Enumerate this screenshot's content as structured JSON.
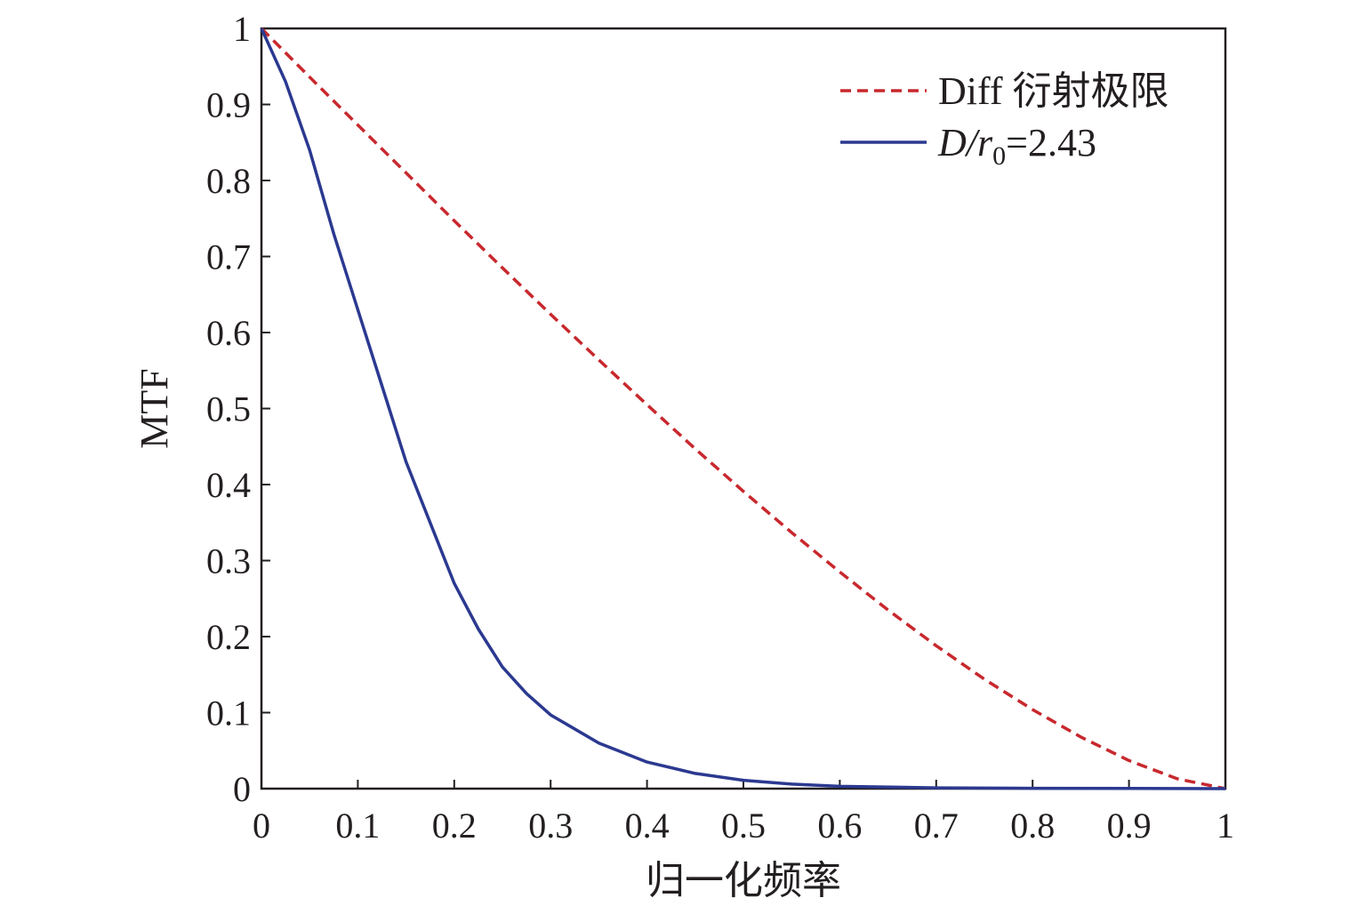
{
  "chart_data": {
    "type": "line",
    "title": "",
    "xlabel": "归一化频率",
    "ylabel": "MTF",
    "xlim": [
      0,
      1
    ],
    "ylim": [
      0,
      1
    ],
    "xticks": [
      "0",
      "0.1",
      "0.2",
      "0.3",
      "0.4",
      "0.5",
      "0.6",
      "0.7",
      "0.8",
      "0.9",
      "1"
    ],
    "yticks": [
      "0",
      "0.1",
      "0.2",
      "0.3",
      "0.4",
      "0.5",
      "0.6",
      "0.7",
      "0.8",
      "0.9",
      "1"
    ],
    "grid": false,
    "legend_position": "top-right",
    "series": [
      {
        "name": "Diff 衍射极限",
        "legend_parts": {
          "prefix": "Diff 衍射极限"
        },
        "style": "dashed",
        "color": "#c8282d",
        "x": [
          0,
          0.05,
          0.1,
          0.15,
          0.2,
          0.25,
          0.3,
          0.35,
          0.4,
          0.45,
          0.5,
          0.55,
          0.6,
          0.65,
          0.7,
          0.75,
          0.8,
          0.85,
          0.9,
          0.95,
          1.0
        ],
        "y": [
          1.0,
          0.936,
          0.873,
          0.81,
          0.747,
          0.685,
          0.624,
          0.564,
          0.505,
          0.447,
          0.391,
          0.337,
          0.285,
          0.235,
          0.188,
          0.144,
          0.104,
          0.068,
          0.037,
          0.013,
          0.0
        ]
      },
      {
        "name": "D/r0=2.43",
        "legend_parts": {
          "italic_main": "D/r",
          "subscript": "0",
          "suffix": "=2.43"
        },
        "style": "solid",
        "color": "#2b3990",
        "x": [
          0,
          0.025,
          0.05,
          0.075,
          0.1,
          0.125,
          0.15,
          0.175,
          0.2,
          0.225,
          0.25,
          0.275,
          0.3,
          0.35,
          0.4,
          0.45,
          0.5,
          0.55,
          0.6,
          0.7,
          0.8,
          0.9,
          1.0
        ],
        "y": [
          1.0,
          0.93,
          0.84,
          0.73,
          0.63,
          0.53,
          0.43,
          0.35,
          0.27,
          0.21,
          0.16,
          0.125,
          0.097,
          0.06,
          0.035,
          0.02,
          0.011,
          0.006,
          0.003,
          0.001,
          0.0005,
          0.0002,
          0.0
        ]
      }
    ]
  }
}
